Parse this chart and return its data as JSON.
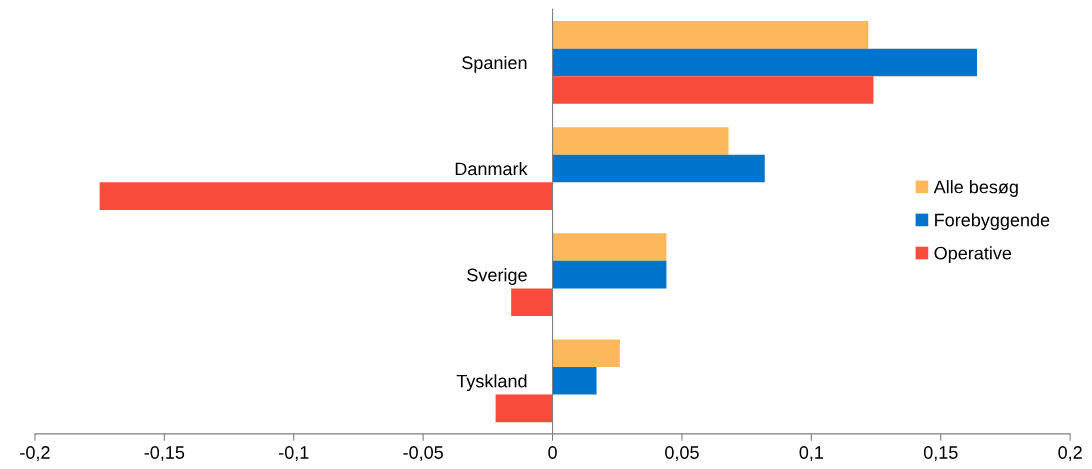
{
  "chart_data": {
    "type": "bar",
    "orientation": "horizontal",
    "categories": [
      "Spanien",
      "Danmark",
      "Sverige",
      "Tyskland"
    ],
    "series": [
      {
        "name": "Alle besøg",
        "color": "#fdb85c",
        "values": [
          0.122,
          0.068,
          0.044,
          0.026
        ]
      },
      {
        "name": "Forebyggende",
        "color": "#0074cc",
        "values": [
          0.164,
          0.082,
          0.044,
          0.017
        ]
      },
      {
        "name": "Operative",
        "color": "#f84b3b",
        "values": [
          0.124,
          -0.175,
          -0.016,
          -0.022
        ]
      }
    ],
    "xlim": [
      -0.2,
      0.2
    ],
    "xticks": [
      {
        "value": -0.2,
        "label": "-0,2"
      },
      {
        "value": -0.15,
        "label": "-0,15"
      },
      {
        "value": -0.1,
        "label": "-0,1"
      },
      {
        "value": -0.05,
        "label": "-0,05"
      },
      {
        "value": 0,
        "label": "0"
      },
      {
        "value": 0.05,
        "label": "0,05"
      },
      {
        "value": 0.1,
        "label": "0,1"
      },
      {
        "value": 0.15,
        "label": "0,15"
      },
      {
        "value": 0.2,
        "label": "0,2"
      }
    ],
    "grid": false,
    "legend": "right"
  }
}
